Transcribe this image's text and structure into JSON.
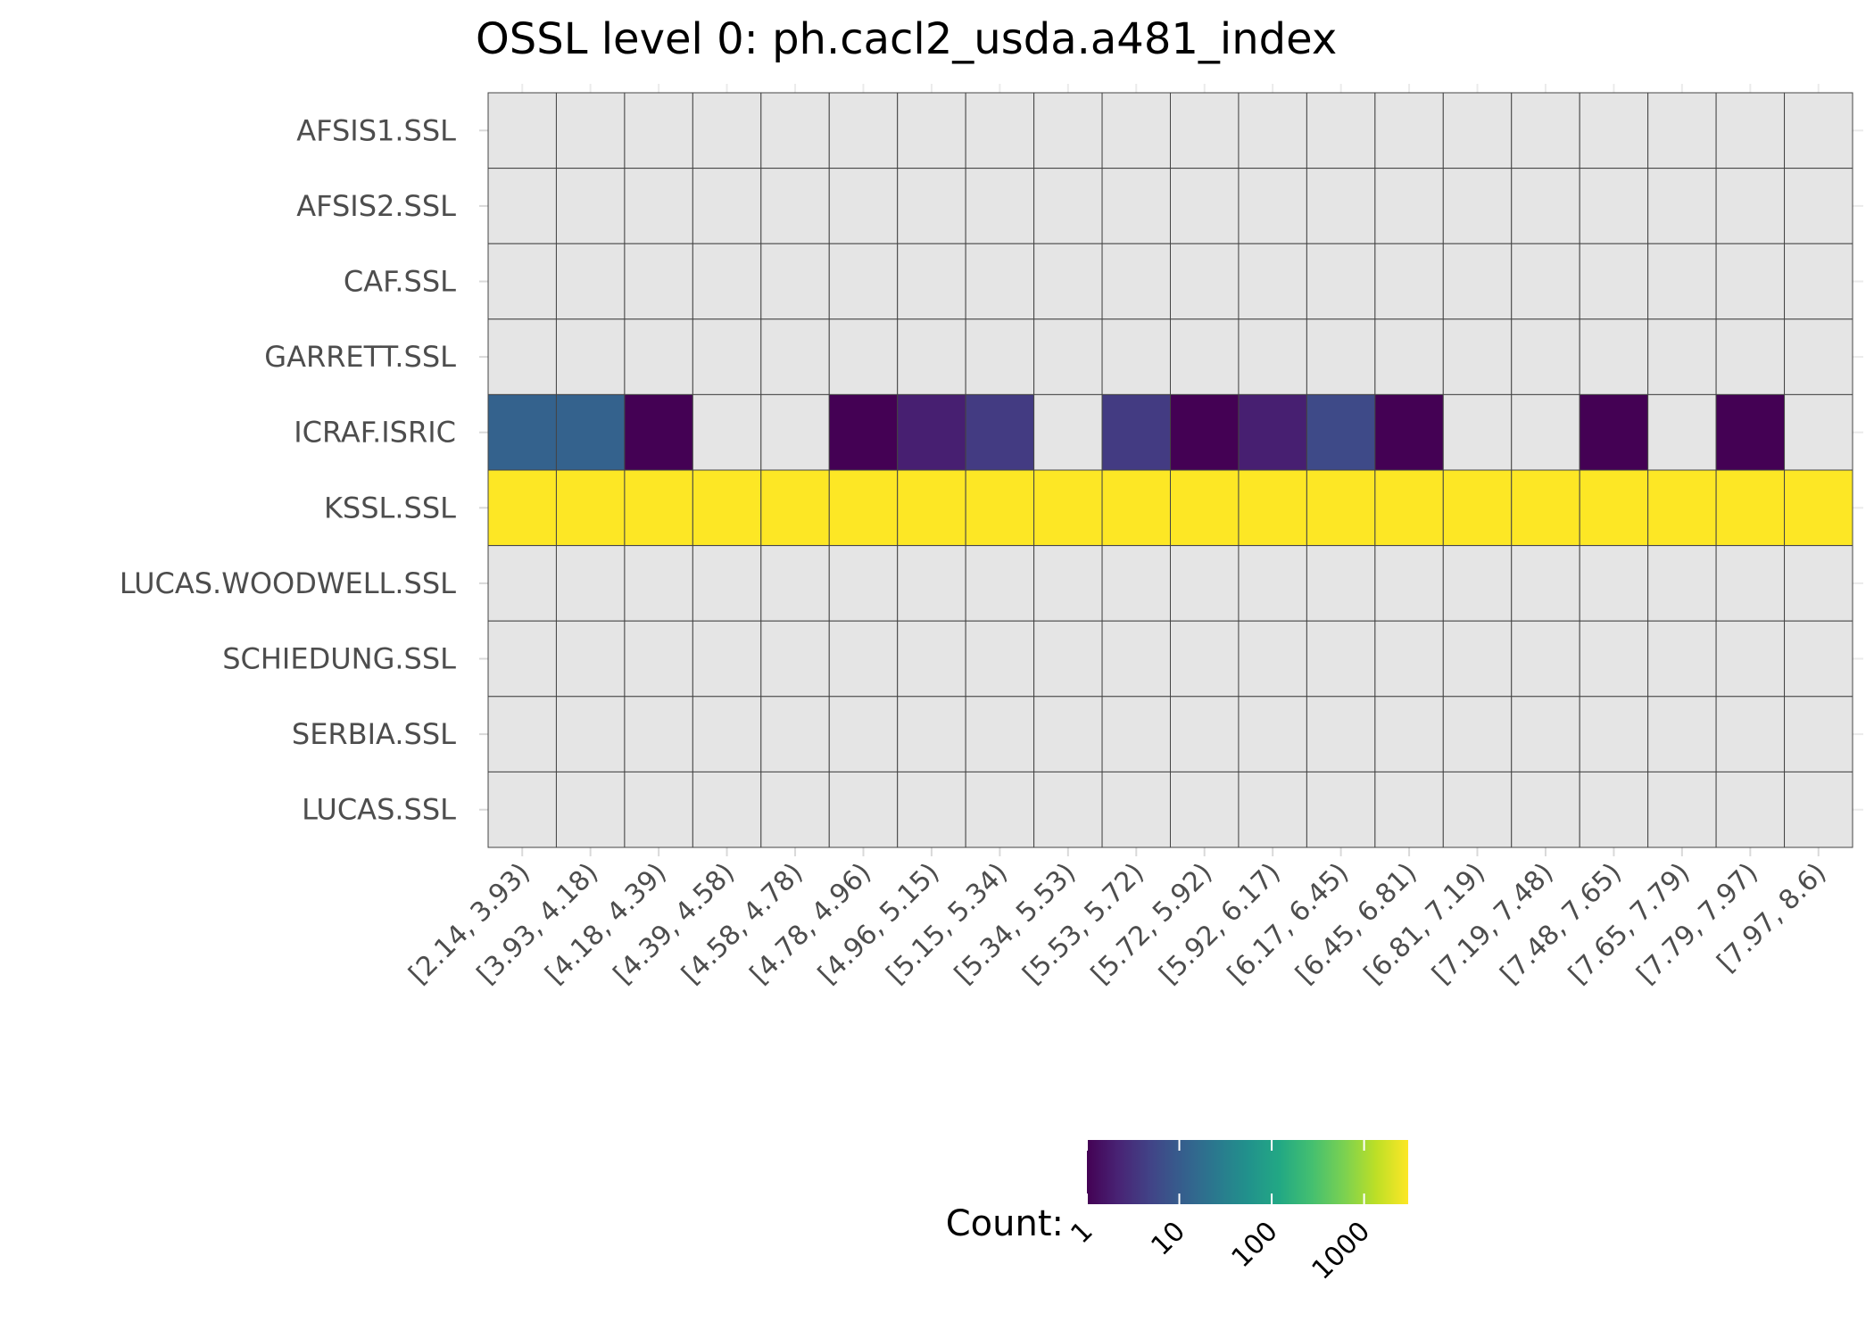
{
  "chart_data": {
    "type": "heatmap",
    "title": "OSSL level 0: ph.cacl2_usda.a481_index",
    "xlabel": "",
    "ylabel": "",
    "x_categories": [
      "[2.14, 3.93)",
      "[3.93, 4.18)",
      "[4.18, 4.39)",
      "[4.39, 4.58)",
      "[4.58, 4.78)",
      "[4.78, 4.96)",
      "[4.96, 5.15)",
      "[5.15, 5.34)",
      "[5.34, 5.53)",
      "[5.53, 5.72)",
      "[5.72, 5.92)",
      "[5.92, 6.17)",
      "[6.17, 6.45)",
      "[6.45, 6.81)",
      "[6.81, 7.19)",
      "[7.19, 7.48)",
      "[7.48, 7.65)",
      "[7.65, 7.79)",
      "[7.79, 7.97)",
      "[7.97, 8.6)"
    ],
    "y_categories": [
      "AFSIS1.SSL",
      "AFSIS2.SSL",
      "CAF.SSL",
      "GARRETT.SSL",
      "ICRAF.ISRIC",
      "KSSL.SSL",
      "LUCAS.WOODWELL.SSL",
      "SCHIEDUNG.SSL",
      "SERBIA.SSL",
      "LUCAS.SSL"
    ],
    "values": [
      [
        null,
        null,
        null,
        null,
        null,
        null,
        null,
        null,
        null,
        null,
        null,
        null,
        null,
        null,
        null,
        null,
        null,
        null,
        null,
        null
      ],
      [
        null,
        null,
        null,
        null,
        null,
        null,
        null,
        null,
        null,
        null,
        null,
        null,
        null,
        null,
        null,
        null,
        null,
        null,
        null,
        null
      ],
      [
        null,
        null,
        null,
        null,
        null,
        null,
        null,
        null,
        null,
        null,
        null,
        null,
        null,
        null,
        null,
        null,
        null,
        null,
        null,
        null
      ],
      [
        null,
        null,
        null,
        null,
        null,
        null,
        null,
        null,
        null,
        null,
        null,
        null,
        null,
        null,
        null,
        null,
        null,
        null,
        null,
        null
      ],
      [
        12,
        12,
        1,
        null,
        null,
        1,
        2,
        4,
        null,
        4,
        1,
        2,
        6,
        1,
        null,
        null,
        1,
        null,
        1,
        null
      ],
      [
        3000,
        3000,
        3000,
        3000,
        3000,
        3000,
        3000,
        3000,
        3000,
        3000,
        3000,
        3000,
        3000,
        3000,
        3000,
        3000,
        3000,
        3000,
        3000,
        3000
      ],
      [
        null,
        null,
        null,
        null,
        null,
        null,
        null,
        null,
        null,
        null,
        null,
        null,
        null,
        null,
        null,
        null,
        null,
        null,
        null,
        null
      ],
      [
        null,
        null,
        null,
        null,
        null,
        null,
        null,
        null,
        null,
        null,
        null,
        null,
        null,
        null,
        null,
        null,
        null,
        null,
        null,
        null
      ],
      [
        null,
        null,
        null,
        null,
        null,
        null,
        null,
        null,
        null,
        null,
        null,
        null,
        null,
        null,
        null,
        null,
        null,
        null,
        null,
        null
      ],
      [
        null,
        null,
        null,
        null,
        null,
        null,
        null,
        null,
        null,
        null,
        null,
        null,
        null,
        null,
        null,
        null,
        null,
        null,
        null,
        null
      ]
    ],
    "color_scale": {
      "name": "viridis",
      "log": true,
      "min": 1,
      "max": 3000,
      "missing_color": "#e5e5e5"
    },
    "legend": {
      "title": "Count:",
      "position": "bottom",
      "ticks": [
        "1",
        "10",
        "100",
        "1000"
      ],
      "tick_values": [
        1,
        10,
        100,
        1000
      ]
    }
  }
}
